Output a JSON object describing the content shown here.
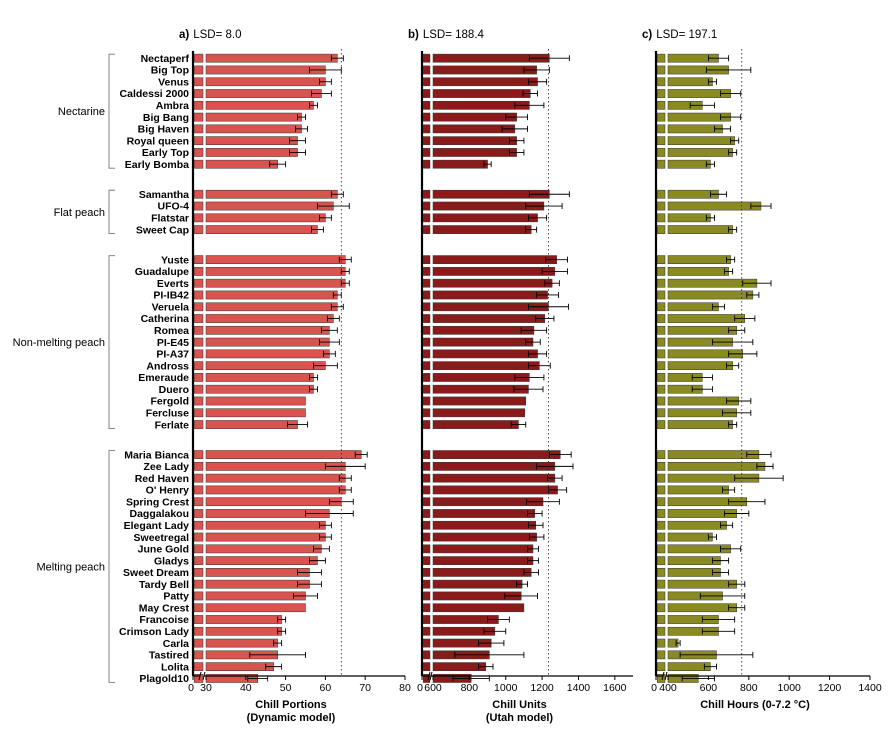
{
  "chart_data": [
    {
      "type": "bar",
      "orientation": "horizontal",
      "panel_label": "a)",
      "title": "LSD= 8.0",
      "xlabel": "Chill Portions",
      "xlabel2": "(Dynamic model)",
      "xlim": [
        0,
        80
      ],
      "axis_break": true,
      "xticks": [
        "0",
        "30",
        "40",
        "50",
        "60",
        "70",
        "80"
      ],
      "lsd_line": 64,
      "color": "#d9534f",
      "categories": [
        "Nectaperf",
        "Big Top",
        "Venus",
        "Caldessi 2000",
        "Ambra",
        "Big Bang",
        "Big Haven",
        "Royal queen",
        "Early Top",
        "Early Bomba",
        "Samantha",
        "UFO-4",
        "Flatstar",
        "Sweet Cap",
        "Yuste",
        "Guadalupe",
        "Everts",
        "PI-IB42",
        "Veruela",
        "Catherina",
        "Romea",
        "PI-E45",
        "PI-A37",
        "Andross",
        "Emeraude",
        "Duero",
        "Fergold",
        "Fercluse",
        "Ferlate",
        "Maria Bianca",
        "Zee Lady",
        "Red Haven",
        "O' Henry",
        "Spring Crest",
        "Daggalakou",
        "Elegant Lady",
        "Sweetregal",
        "June Gold",
        "Gladys",
        "Sweet Dream",
        "Tardy Bell",
        "Patty",
        "May Crest",
        "Francoise",
        "Crimson Lady",
        "Carla",
        "Tastired",
        "Lolita",
        "Plagold10"
      ],
      "values": [
        63,
        60,
        60,
        59,
        57,
        54,
        54,
        53,
        53,
        48,
        63,
        62,
        60,
        58,
        65,
        65,
        65,
        63,
        63,
        62,
        61,
        61,
        61,
        60,
        57,
        57,
        55,
        55,
        53,
        69,
        65,
        65,
        65,
        64,
        61,
        60,
        60,
        59,
        58,
        56,
        56,
        55,
        55,
        49,
        49,
        48,
        48,
        47,
        43
      ],
      "errors": [
        1.5,
        4,
        1.5,
        2.5,
        1,
        1,
        1.5,
        2,
        2,
        2,
        1.5,
        4,
        1.5,
        1.5,
        1.5,
        1,
        1,
        1,
        1.5,
        1.5,
        2,
        2.5,
        1.5,
        3,
        1,
        1,
        0,
        0,
        2.5,
        1.5,
        5,
        1.5,
        1.5,
        3,
        6,
        1.5,
        1.5,
        2,
        2,
        3,
        3,
        3,
        0,
        1,
        1,
        1,
        7,
        2,
        2.5
      ]
    },
    {
      "type": "bar",
      "orientation": "horizontal",
      "panel_label": "b)",
      "title": "LSD= 188.4",
      "xlabel": "Chill Units",
      "xlabel2": "(Utah model)",
      "xlim": [
        0,
        1700
      ],
      "axis_break": true,
      "xticks": [
        "0",
        "600",
        "800",
        "1000",
        "1200",
        "1400",
        "1600"
      ],
      "lsd_line": 1235,
      "color": "#8b1a1a",
      "categories": [
        "Nectaperf",
        "Big Top",
        "Venus",
        "Caldessi 2000",
        "Ambra",
        "Big Bang",
        "Big Haven",
        "Royal queen",
        "Early Top",
        "Early Bomba",
        "Samantha",
        "UFO-4",
        "Flatstar",
        "Sweet Cap",
        "Yuste",
        "Guadalupe",
        "Everts",
        "PI-IB42",
        "Veruela",
        "Catherina",
        "Romea",
        "PI-E45",
        "PI-A37",
        "Andross",
        "Emeraude",
        "Duero",
        "Fergold",
        "Fercluse",
        "Ferlate",
        "Maria Bianca",
        "Zee Lady",
        "Red Haven",
        "O' Henry",
        "Spring Crest",
        "Daggalakou",
        "Elegant Lady",
        "Sweetregal",
        "June Gold",
        "Gladys",
        "Sweet Dream",
        "Tardy Bell",
        "Patty",
        "May Crest",
        "Francoise",
        "Crimson Lady",
        "Carla",
        "Tastired",
        "Lolita",
        "Plagold10"
      ],
      "values": [
        1240,
        1170,
        1175,
        1135,
        1130,
        1060,
        1050,
        1060,
        1060,
        900,
        1240,
        1210,
        1175,
        1140,
        1280,
        1270,
        1255,
        1230,
        1235,
        1215,
        1155,
        1150,
        1175,
        1185,
        1130,
        1125,
        1110,
        1105,
        1070,
        1300,
        1270,
        1270,
        1285,
        1205,
        1160,
        1165,
        1170,
        1150,
        1150,
        1140,
        1090,
        1085,
        1100,
        960,
        940,
        920,
        910,
        890,
        810
      ],
      "errors": [
        110,
        70,
        50,
        40,
        80,
        60,
        70,
        40,
        40,
        20,
        110,
        100,
        50,
        30,
        60,
        70,
        40,
        60,
        110,
        50,
        70,
        40,
        50,
        60,
        80,
        80,
        0,
        0,
        40,
        60,
        100,
        40,
        50,
        90,
        40,
        40,
        40,
        30,
        30,
        40,
        30,
        90,
        0,
        60,
        60,
        70,
        190,
        40,
        100
      ]
    },
    {
      "type": "bar",
      "orientation": "horizontal",
      "panel_label": "c)",
      "title": "LSD= 197.1",
      "xlabel": "Chill Hours (0-7.2 °C)",
      "xlim": [
        0,
        1400
      ],
      "axis_break": true,
      "xticks": [
        "0",
        "400",
        "600",
        "800",
        "1000",
        "1200",
        "1400"
      ],
      "lsd_line": 765,
      "color": "#8a8a23",
      "categories": [
        "Nectaperf",
        "Big Top",
        "Venus",
        "Caldessi 2000",
        "Ambra",
        "Big Bang",
        "Big Haven",
        "Royal queen",
        "Early Top",
        "Early Bomba",
        "Samantha",
        "UFO-4",
        "Flatstar",
        "Sweet Cap",
        "Yuste",
        "Guadalupe",
        "Everts",
        "PI-IB42",
        "Veruela",
        "Catherina",
        "Romea",
        "PI-E45",
        "PI-A37",
        "Andross",
        "Emeraude",
        "Duero",
        "Fergold",
        "Fercluse",
        "Ferlate",
        "Maria Bianca",
        "Zee Lady",
        "Red Haven",
        "O' Henry",
        "Spring Crest",
        "Daggalakou",
        "Elegant Lady",
        "Sweetregal",
        "June Gold",
        "Gladys",
        "Sweet Dream",
        "Tardy Bell",
        "Patty",
        "May Crest",
        "Francoise",
        "Crimson Lady",
        "Carla",
        "Tastired",
        "Lolita",
        "Plagold10"
      ],
      "values": [
        650,
        700,
        620,
        710,
        570,
        710,
        670,
        730,
        720,
        610,
        650,
        860,
        610,
        720,
        710,
        700,
        840,
        820,
        650,
        780,
        740,
        720,
        770,
        720,
        570,
        570,
        750,
        740,
        720,
        850,
        880,
        850,
        700,
        790,
        740,
        690,
        620,
        710,
        660,
        660,
        740,
        670,
        740,
        650,
        650,
        450,
        640,
        610,
        550
      ],
      "errors": [
        50,
        110,
        20,
        50,
        60,
        50,
        40,
        20,
        20,
        20,
        40,
        50,
        20,
        20,
        20,
        20,
        70,
        30,
        30,
        50,
        40,
        100,
        70,
        30,
        50,
        50,
        60,
        70,
        20,
        60,
        40,
        120,
        30,
        90,
        60,
        30,
        20,
        50,
        40,
        40,
        40,
        110,
        40,
        80,
        80,
        10,
        180,
        30,
        80
      ]
    }
  ],
  "groups": [
    "Nectarine",
    "Flat peach",
    "Non-melting peach",
    "Melting peach"
  ]
}
